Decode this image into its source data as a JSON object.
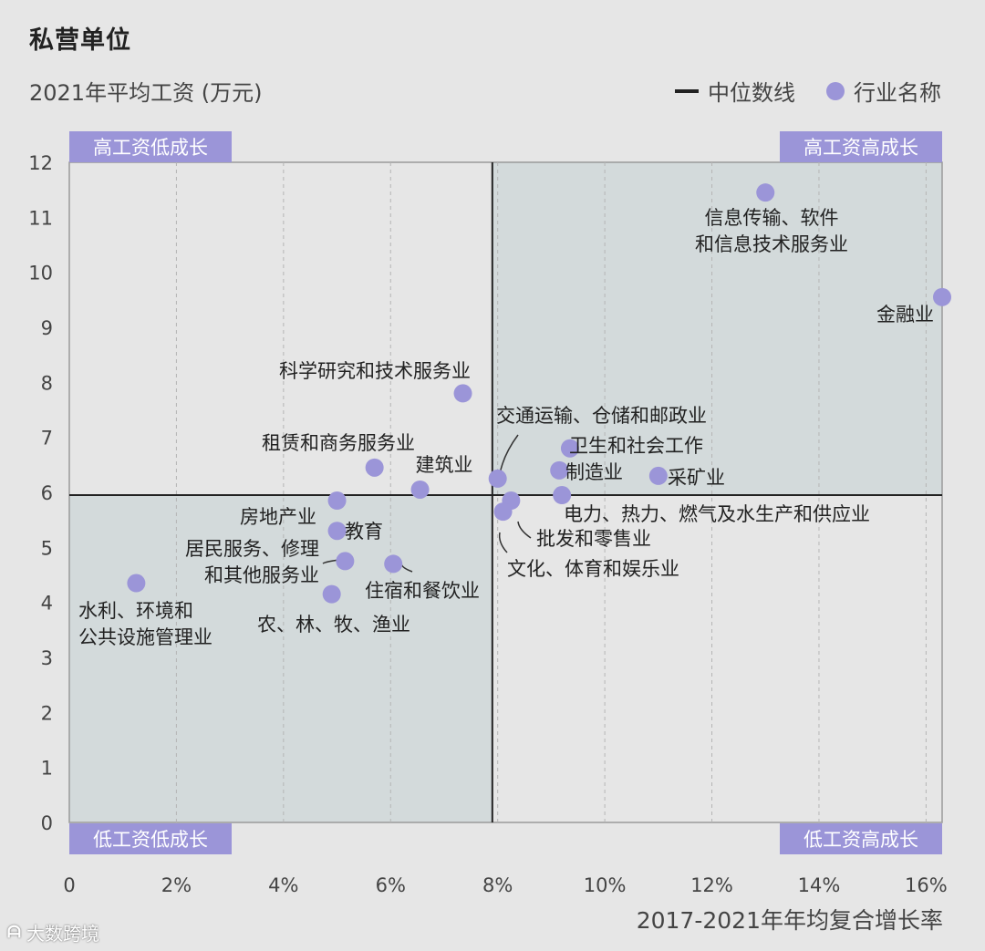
{
  "title": "私营单位",
  "y_axis_title": "2021年平均工资 (万元)",
  "x_axis_title": "2017-2021年年均复合增长率",
  "legend": {
    "median_label": "中位数线",
    "industry_label": "行业名称"
  },
  "quadrants": {
    "top_left": "高工资低成长",
    "top_right": "高工资高成长",
    "bottom_left": "低工资低成长",
    "bottom_right": "低工资高成长"
  },
  "logo_text": "大数跨境",
  "colors": {
    "point": "#9b95d8",
    "badge": "#9b95d8",
    "quadrant_shade": "#d3dadb",
    "background": "#e6e6e6",
    "median_line": "#222222"
  },
  "chart_data": {
    "type": "scatter",
    "title": "私营单位",
    "xlabel": "2017-2021年年均复合增长率",
    "ylabel": "2021年平均工资 (万元)",
    "xlim": [
      0,
      16.3
    ],
    "ylim": [
      0,
      12
    ],
    "x_ticks": [
      {
        "value": 0,
        "label": "0"
      },
      {
        "value": 2,
        "label": "2%"
      },
      {
        "value": 4,
        "label": "4%"
      },
      {
        "value": 6,
        "label": "6%"
      },
      {
        "value": 8,
        "label": "8%"
      },
      {
        "value": 10,
        "label": "10%"
      },
      {
        "value": 12,
        "label": "12%"
      },
      {
        "value": 14,
        "label": "14%"
      },
      {
        "value": 16,
        "label": "16%"
      }
    ],
    "y_ticks": [
      0,
      1,
      2,
      3,
      4,
      5,
      6,
      7,
      8,
      9,
      10,
      11,
      12
    ],
    "grid": "vertical-dashed",
    "median": {
      "x": 7.9,
      "y": 5.95
    },
    "points": [
      {
        "name": "信息传输、软件\n和信息技术服务业",
        "x": 13.0,
        "y": 11.45
      },
      {
        "name": "金融业",
        "x": 16.3,
        "y": 9.55
      },
      {
        "name": "科学研究和技术服务业",
        "x": 7.35,
        "y": 7.8
      },
      {
        "name": "租赁和商务服务业",
        "x": 5.7,
        "y": 6.45
      },
      {
        "name": "建筑业",
        "x": 6.55,
        "y": 6.05
      },
      {
        "name": "交通运输、仓储和邮政业",
        "x": 8.0,
        "y": 6.25
      },
      {
        "name": "卫生和社会工作",
        "x": 9.35,
        "y": 6.8
      },
      {
        "name": "制造业",
        "x": 9.15,
        "y": 6.4
      },
      {
        "name": "采矿业",
        "x": 11.0,
        "y": 6.3
      },
      {
        "name": "电力、热力、燃气及水生产和供应业",
        "x": 9.2,
        "y": 5.95
      },
      {
        "name": "批发和零售业",
        "x": 8.25,
        "y": 5.85
      },
      {
        "name": "文化、体育和娱乐业",
        "x": 8.1,
        "y": 5.65
      },
      {
        "name": "房地产业",
        "x": 5.0,
        "y": 5.85
      },
      {
        "name": "教育",
        "x": 5.0,
        "y": 5.3
      },
      {
        "name": "居民服务、修理\n和其他服务业",
        "x": 5.15,
        "y": 4.75
      },
      {
        "name": "住宿和餐饮业",
        "x": 6.05,
        "y": 4.7
      },
      {
        "name": "农、林、牧、渔业",
        "x": 4.9,
        "y": 4.15
      },
      {
        "name": "水利、环境和\n公共设施管理业",
        "x": 1.25,
        "y": 4.35
      }
    ]
  }
}
